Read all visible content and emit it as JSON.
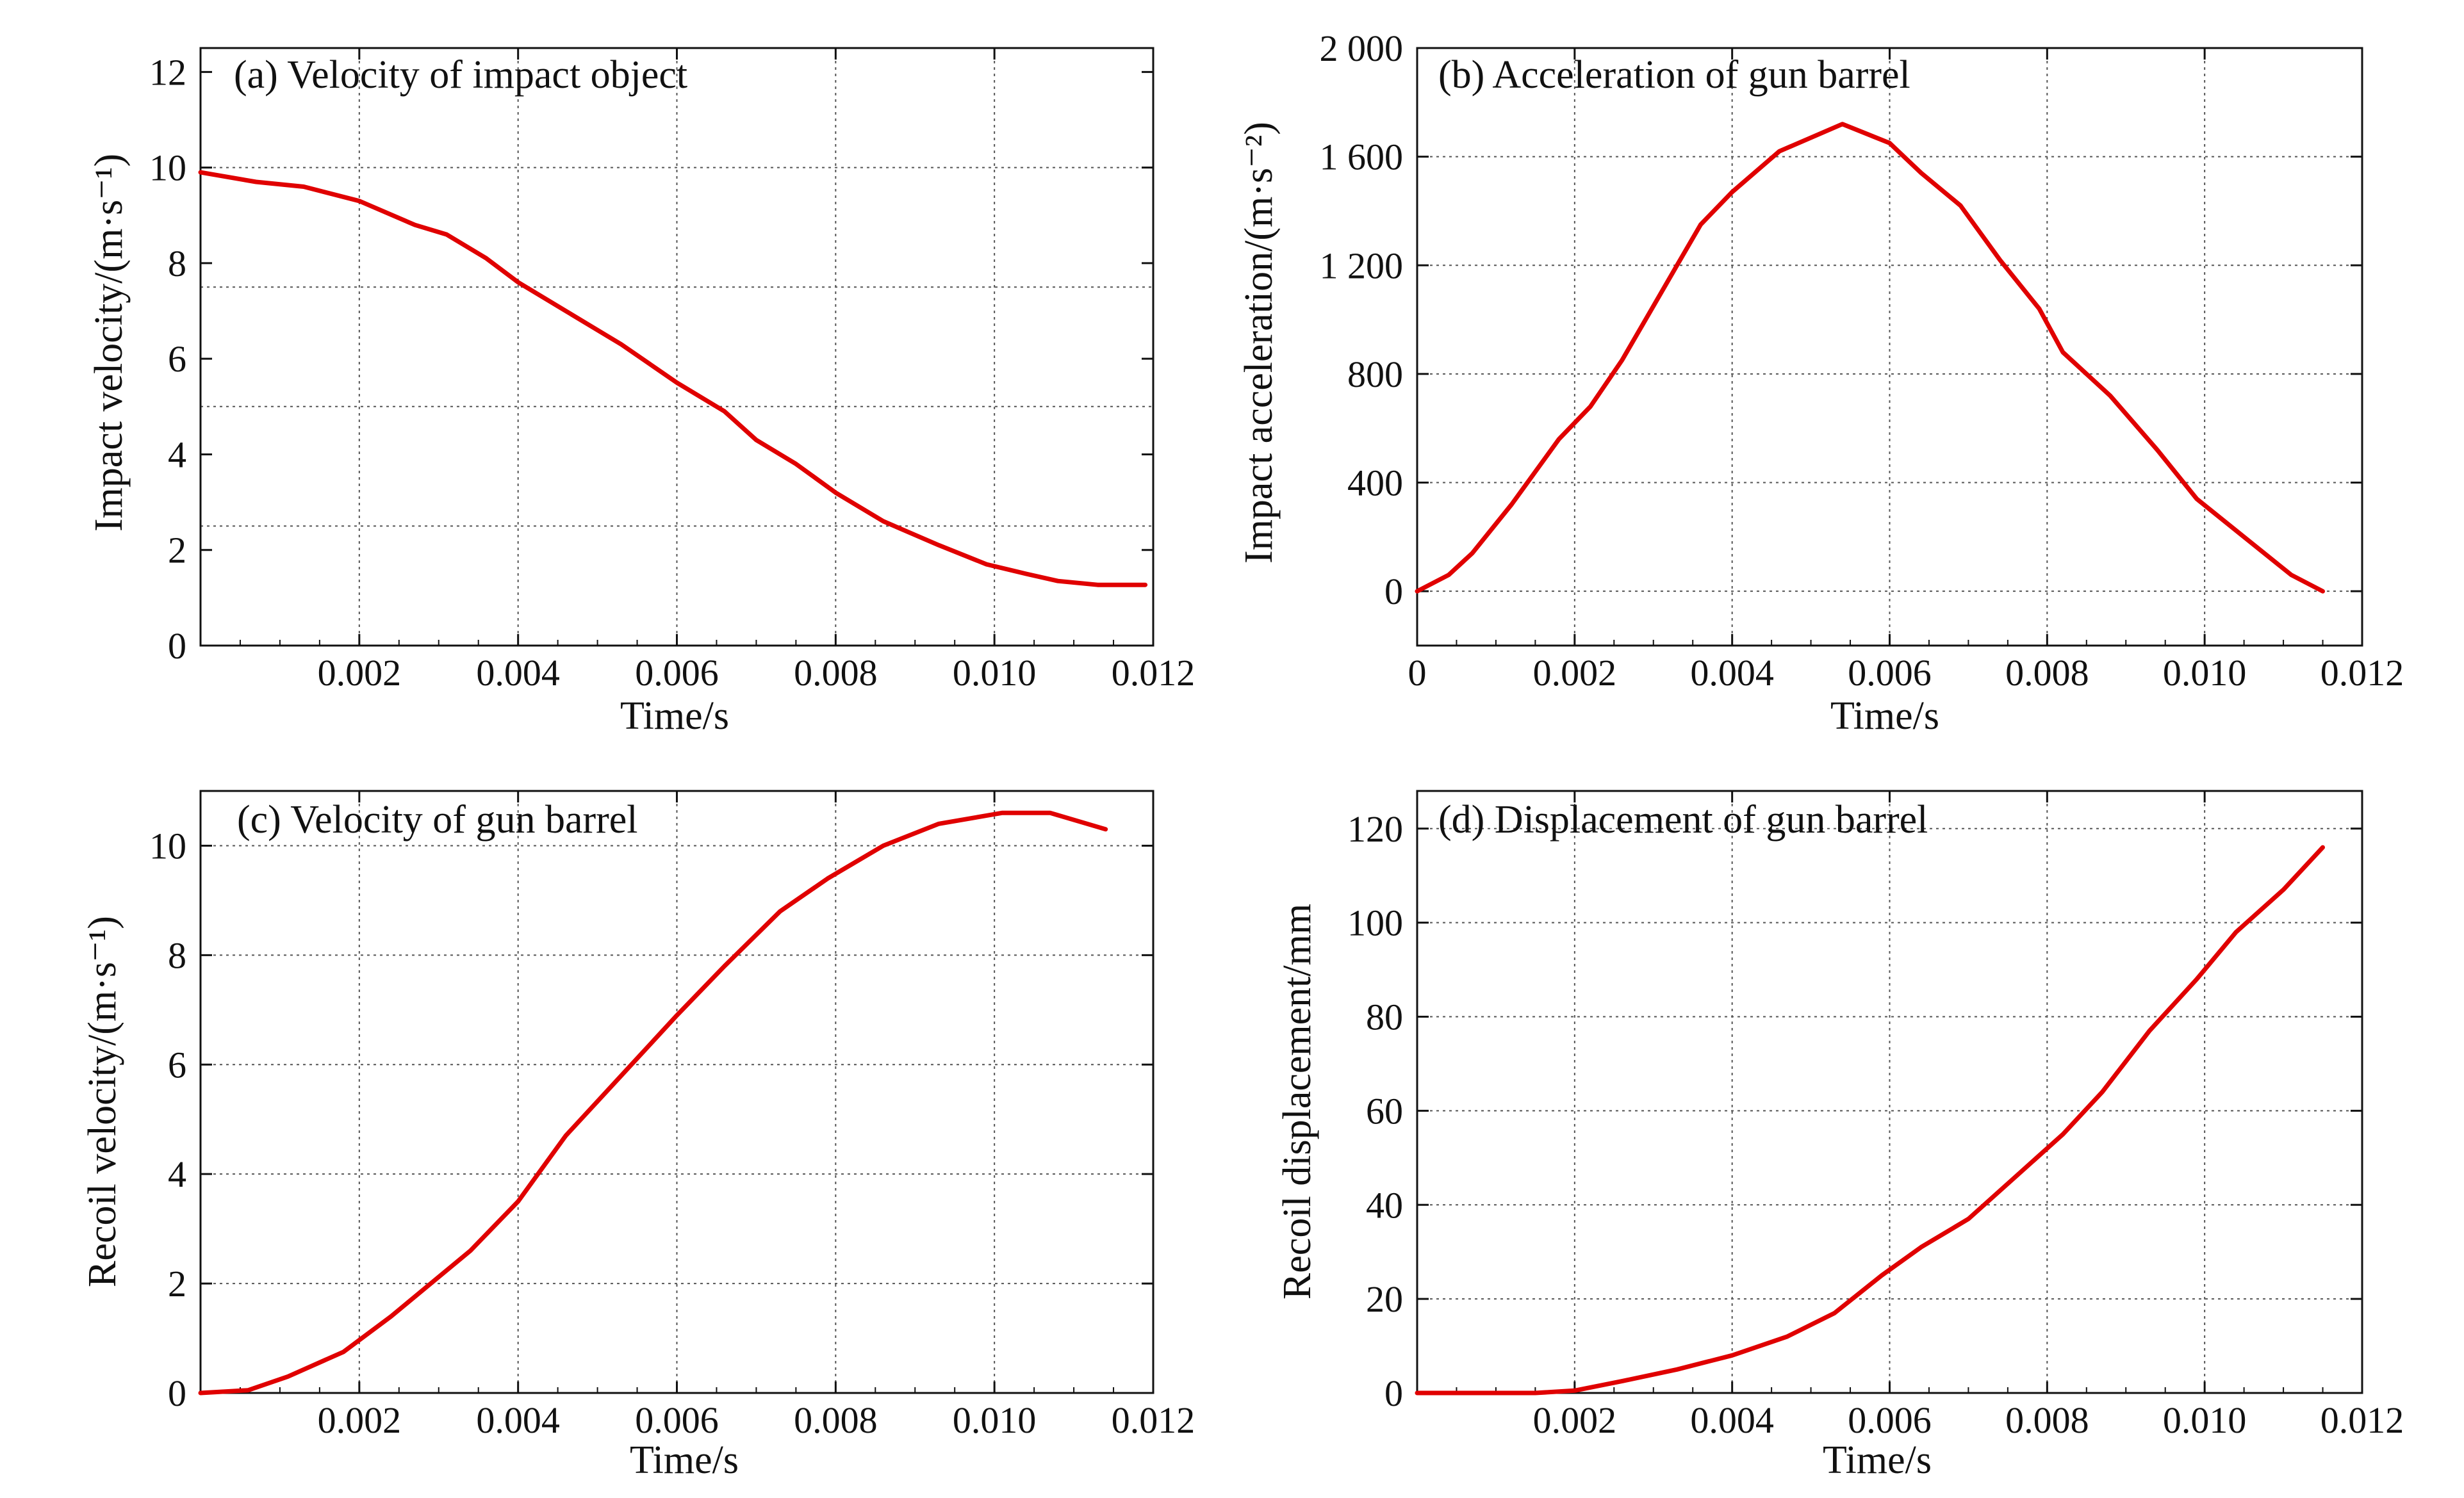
{
  "chart_data": [
    {
      "id": "a",
      "type": "line",
      "title": "(a) Velocity of impact object",
      "xlabel": "Time/s",
      "ylabel": "Impact velocity/(m·s⁻¹)",
      "xlim": [
        0,
        0.012
      ],
      "ylim": [
        0,
        12.5
      ],
      "xticks": [
        0.002,
        0.004,
        0.006,
        0.008,
        0.01,
        0.012
      ],
      "xtick_labels": [
        "0.002",
        "0.004",
        "0.006",
        "0.008",
        "0.010",
        "0.012"
      ],
      "yticks": [
        0,
        2,
        4,
        6,
        8,
        10,
        12
      ],
      "ytick_labels": [
        "0",
        "2",
        "4",
        "6",
        "8",
        "10",
        "12"
      ],
      "hgrid": [
        2.5,
        5,
        7.5,
        10
      ],
      "vgrid": [
        0.002,
        0.004,
        0.006,
        0.008,
        0.01
      ],
      "grid": true,
      "line_color": "#e00000",
      "series": [
        {
          "x": [
            0,
            0.0007,
            0.0013,
            0.002,
            0.0027,
            0.0031,
            0.0036,
            0.004,
            0.0046,
            0.0053,
            0.006,
            0.0066,
            0.007,
            0.0075,
            0.008,
            0.0086,
            0.0093,
            0.0099,
            0.0104,
            0.0108,
            0.0113,
            0.0119
          ],
          "y": [
            9.9,
            9.7,
            9.6,
            9.3,
            8.8,
            8.6,
            8.1,
            7.6,
            7.0,
            6.3,
            5.5,
            4.9,
            4.3,
            3.8,
            3.2,
            2.6,
            2.1,
            1.7,
            1.5,
            1.35,
            1.27,
            1.27
          ]
        }
      ]
    },
    {
      "id": "b",
      "type": "line",
      "title": "(b) Acceleration of gun barrel",
      "xlabel": "Time/s",
      "ylabel": "Impact acceleration/(m·s⁻²)",
      "xlim": [
        0,
        0.012
      ],
      "ylim": [
        -200,
        2000
      ],
      "xticks": [
        0,
        0.002,
        0.004,
        0.006,
        0.008,
        0.01,
        0.012
      ],
      "xtick_labels": [
        "0",
        "0.002",
        "0.004",
        "0.006",
        "0.008",
        "0.010",
        "0.012"
      ],
      "yticks": [
        0,
        400,
        800,
        1200,
        1600,
        2000
      ],
      "ytick_labels": [
        "0",
        "400",
        "800",
        "1 200",
        "1 600",
        "2 000"
      ],
      "hgrid": [
        0,
        400,
        800,
        1200,
        1600
      ],
      "vgrid": [
        0.002,
        0.004,
        0.006,
        0.008,
        0.01
      ],
      "grid": true,
      "line_color": "#e00000",
      "series": [
        {
          "x": [
            0,
            0.0004,
            0.0007,
            0.0012,
            0.0018,
            0.0022,
            0.0026,
            0.003,
            0.0033,
            0.0036,
            0.004,
            0.0046,
            0.0054,
            0.006,
            0.0064,
            0.0069,
            0.0074,
            0.0079,
            0.0082,
            0.0088,
            0.0094,
            0.0099,
            0.0105,
            0.0111,
            0.0115
          ],
          "y": [
            0,
            60,
            140,
            320,
            560,
            680,
            850,
            1050,
            1200,
            1350,
            1470,
            1620,
            1720,
            1650,
            1540,
            1420,
            1220,
            1040,
            880,
            720,
            520,
            340,
            200,
            60,
            0
          ]
        }
      ]
    },
    {
      "id": "c",
      "type": "line",
      "title": "(c) Velocity of gun barrel",
      "xlabel": "Time/s",
      "ylabel": "Recoil velocity/(m·s⁻¹)",
      "xlim": [
        0,
        0.012
      ],
      "ylim": [
        0,
        11
      ],
      "xticks": [
        0.002,
        0.004,
        0.006,
        0.008,
        0.01,
        0.012
      ],
      "xtick_labels": [
        "0.002",
        "0.004",
        "0.006",
        "0.008",
        "0.010",
        "0.012"
      ],
      "yticks": [
        0,
        2,
        4,
        6,
        8,
        10
      ],
      "ytick_labels": [
        "0",
        "2",
        "4",
        "6",
        "8",
        "10"
      ],
      "hgrid": [
        2,
        4,
        6,
        8,
        10
      ],
      "vgrid": [
        0.002,
        0.004,
        0.006,
        0.008,
        0.01
      ],
      "grid": true,
      "line_color": "#e00000",
      "series": [
        {
          "x": [
            0,
            0.0006,
            0.0011,
            0.0018,
            0.0024,
            0.0029,
            0.0034,
            0.004,
            0.0046,
            0.0053,
            0.006,
            0.0066,
            0.0073,
            0.0079,
            0.0086,
            0.0093,
            0.0101,
            0.0107,
            0.0114
          ],
          "y": [
            0,
            0.05,
            0.3,
            0.75,
            1.4,
            2.0,
            2.6,
            3.5,
            4.7,
            5.8,
            6.9,
            7.8,
            8.8,
            9.4,
            10.0,
            10.4,
            10.6,
            10.6,
            10.3
          ]
        }
      ]
    },
    {
      "id": "d",
      "type": "line",
      "title": "(d) Displacement of gun barrel",
      "xlabel": "Time/s",
      "ylabel": "Recoil displacement/mm",
      "xlim": [
        0,
        0.012
      ],
      "ylim": [
        0,
        128
      ],
      "xticks": [
        0.002,
        0.004,
        0.006,
        0.008,
        0.01,
        0.012
      ],
      "xtick_labels": [
        "0.002",
        "0.004",
        "0.006",
        "0.008",
        "0.010",
        "0.012"
      ],
      "yticks": [
        0,
        20,
        40,
        60,
        80,
        100,
        120
      ],
      "ytick_labels": [
        "0",
        "20",
        "40",
        "60",
        "80",
        "100",
        "120"
      ],
      "hgrid": [
        20,
        40,
        60,
        80,
        100,
        120
      ],
      "vgrid": [
        0.002,
        0.004,
        0.006,
        0.008,
        0.01
      ],
      "grid": true,
      "line_color": "#e00000",
      "series": [
        {
          "x": [
            0,
            0.0005,
            0.001,
            0.0015,
            0.002,
            0.0026,
            0.0033,
            0.004,
            0.0047,
            0.0053,
            0.0059,
            0.0064,
            0.007,
            0.0076,
            0.0082,
            0.0087,
            0.0093,
            0.0099,
            0.0104,
            0.011,
            0.0115
          ],
          "y": [
            0,
            0,
            0,
            0,
            0.5,
            2.5,
            5,
            8,
            12,
            17,
            25,
            31,
            37,
            46,
            55,
            64,
            77,
            88,
            98,
            107,
            116
          ]
        }
      ]
    }
  ]
}
